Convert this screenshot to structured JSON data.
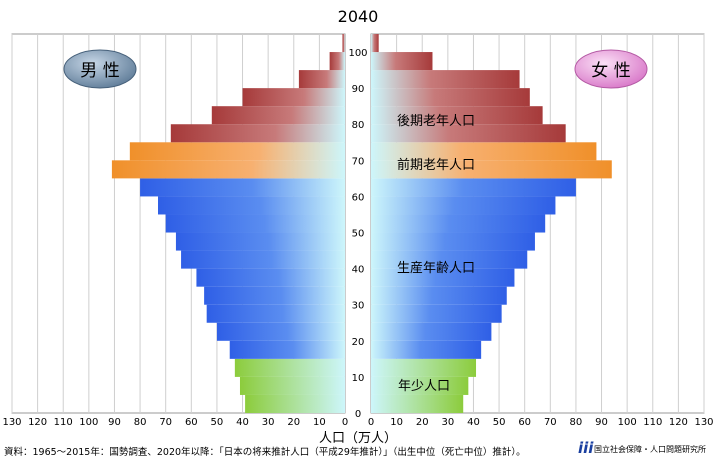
{
  "chart_data": {
    "type": "bar",
    "subtype": "population-pyramid",
    "title": "2040",
    "xlabel": "人口（万人）",
    "x_ticks_left": [
      130,
      120,
      110,
      100,
      90,
      80,
      70,
      60,
      50,
      40,
      30,
      20,
      10,
      0
    ],
    "x_ticks_right": [
      0,
      10,
      20,
      30,
      40,
      50,
      60,
      70,
      80,
      90,
      100,
      110,
      120,
      130
    ],
    "y_ticks": [
      0,
      10,
      20,
      30,
      40,
      50,
      60,
      70,
      80,
      90,
      100
    ],
    "xlim": [
      0,
      130
    ],
    "ylim": [
      0,
      105
    ],
    "grid": true,
    "legend": {
      "male_label": "男 性",
      "female_label": "女 性"
    },
    "colors": {
      "young": "#8ccc3c",
      "working": "#2f5fe6",
      "early_elderly": "#f0902a",
      "late_elderly": "#a63a3a",
      "inner": "#cdf6fb",
      "male_badge": "#6f8ca8",
      "female_badge": "#e58fd6"
    },
    "group_labels": {
      "young": "年少人口",
      "working": "生産年齢人口",
      "early_elderly": "前期老年人口",
      "late_elderly": "後期老年人口"
    },
    "age_groups": [
      {
        "age_from": 0,
        "age_to": 4,
        "male": 39,
        "female": 36
      },
      {
        "age_from": 5,
        "age_to": 9,
        "male": 41,
        "female": 38
      },
      {
        "age_from": 10,
        "age_to": 14,
        "male": 43,
        "female": 41
      },
      {
        "age_from": 15,
        "age_to": 19,
        "male": 45,
        "female": 43
      },
      {
        "age_from": 20,
        "age_to": 24,
        "male": 50,
        "female": 47
      },
      {
        "age_from": 25,
        "age_to": 29,
        "male": 54,
        "female": 51
      },
      {
        "age_from": 30,
        "age_to": 34,
        "male": 55,
        "female": 53
      },
      {
        "age_from": 35,
        "age_to": 39,
        "male": 58,
        "female": 56
      },
      {
        "age_from": 40,
        "age_to": 44,
        "male": 64,
        "female": 61
      },
      {
        "age_from": 45,
        "age_to": 49,
        "male": 66,
        "female": 64
      },
      {
        "age_from": 50,
        "age_to": 54,
        "male": 70,
        "female": 68
      },
      {
        "age_from": 55,
        "age_to": 59,
        "male": 73,
        "female": 72
      },
      {
        "age_from": 60,
        "age_to": 64,
        "male": 80,
        "female": 80
      },
      {
        "age_from": 65,
        "age_to": 69,
        "male": 91,
        "female": 94
      },
      {
        "age_from": 70,
        "age_to": 74,
        "male": 84,
        "female": 88
      },
      {
        "age_from": 75,
        "age_to": 79,
        "male": 68,
        "female": 76
      },
      {
        "age_from": 80,
        "age_to": 84,
        "male": 52,
        "female": 67
      },
      {
        "age_from": 85,
        "age_to": 89,
        "male": 40,
        "female": 62
      },
      {
        "age_from": 90,
        "age_to": 94,
        "male": 18,
        "female": 58
      },
      {
        "age_from": 95,
        "age_to": 99,
        "male": 6,
        "female": 24
      },
      {
        "age_from": 100,
        "age_to": 104,
        "male": 1,
        "female": 3
      }
    ]
  },
  "footer": {
    "source_text": "資料：1965～2015年：国勢調査、2020年以降：「日本の将来推計人口（平成29年推計）」（出生中位（死亡中位）推計）。",
    "org_name": "国立社会保障・人口問題研究所"
  }
}
